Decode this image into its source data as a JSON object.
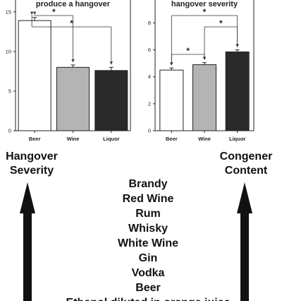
{
  "chart_data": [
    {
      "type": "bar",
      "title": "produce a hangover",
      "categories": [
        "Beer",
        "Wine",
        "Liquor"
      ],
      "values": [
        13.9,
        8.0,
        7.6
      ],
      "errors": [
        0.4,
        0.3,
        0.4
      ],
      "bar_colors": [
        "#ffffff",
        "#b4b4b4",
        "#2a2a2a"
      ],
      "yticks": [
        0,
        5,
        10,
        15
      ],
      "ylim": [
        0,
        16.5
      ],
      "xlabel": "",
      "ylabel": "",
      "significance": [
        {
          "from": 0,
          "to": 1,
          "label": "*"
        },
        {
          "from": 0,
          "to": 2,
          "label": "*"
        }
      ]
    },
    {
      "type": "bar",
      "title": "hangover severity",
      "categories": [
        "Beer",
        "Wine",
        "Liquor"
      ],
      "values": [
        4.5,
        4.9,
        5.85
      ],
      "errors": [
        0.15,
        0.15,
        0.15
      ],
      "bar_colors": [
        "#ffffff",
        "#b4b4b4",
        "#2a2a2a"
      ],
      "yticks": [
        0,
        2,
        4,
        6,
        8
      ],
      "ylim": [
        0,
        9.7
      ],
      "xlabel": "",
      "ylabel": "",
      "significance": [
        {
          "from": 0,
          "to": 2,
          "label": "*"
        },
        {
          "from": 1,
          "to": 2,
          "label": "*"
        },
        {
          "from": 0,
          "to": 1,
          "label": "*"
        }
      ]
    }
  ],
  "lower": {
    "left_label": [
      "Hangover",
      "Severity"
    ],
    "right_label": [
      "Congener",
      "Content"
    ],
    "drinks": [
      "Brandy",
      "Red Wine",
      "Rum",
      "Whisky",
      "White Wine",
      "Gin",
      "Vodka",
      "Beer",
      "Ethanol diluted in orange juice"
    ],
    "arrow_color": "#111111"
  }
}
